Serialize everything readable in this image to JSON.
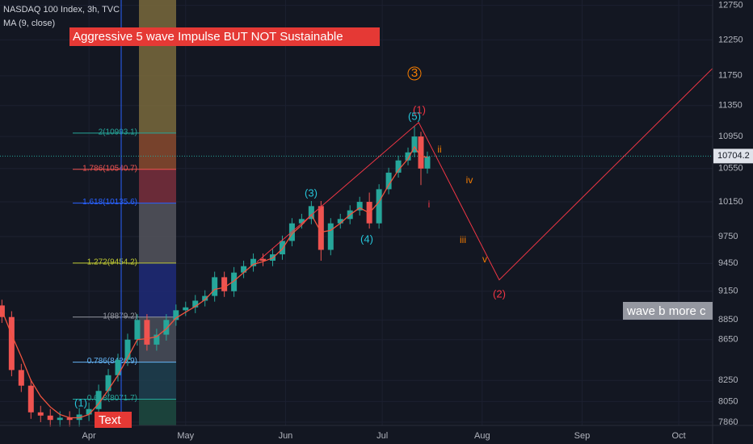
{
  "chart_data": {
    "type": "candlestick",
    "title": "NASDAQ 100 Index, 3h, TVC",
    "subtitle": "MA (9, close)",
    "headline": "Aggressive 5 wave Impulse BUT NOT Sustainable",
    "log_scale": true,
    "xlim": [
      -27.6,
      193.5
    ],
    "xticks": [
      {
        "value": 0,
        "label": "Apr"
      },
      {
        "value": 30,
        "label": "May"
      },
      {
        "value": 61,
        "label": "Jun"
      },
      {
        "value": 91,
        "label": "Jul"
      },
      {
        "value": 122,
        "label": "Aug"
      },
      {
        "value": 153,
        "label": "Sep"
      },
      {
        "value": 183,
        "label": "Oct"
      }
    ],
    "ylim": [
      7830,
      12830
    ],
    "yticks": [
      12750,
      12250,
      11750,
      11350,
      10950,
      10550,
      10150,
      9750,
      9450,
      9150,
      8850,
      8650,
      8250,
      8050,
      7860
    ],
    "up_color": "#26a69a",
    "down_color": "#ef5350",
    "ma_color": "#f0533f",
    "x": [
      -27,
      -24,
      -21,
      -18,
      -15,
      -12,
      -9,
      -6,
      -3,
      0,
      3,
      6,
      9,
      12,
      15,
      18,
      21,
      24,
      27,
      30,
      33,
      36,
      39,
      42,
      45,
      48,
      51,
      54,
      57,
      60,
      63,
      66,
      69,
      72,
      75,
      78,
      81,
      84,
      87,
      90,
      93,
      96,
      99,
      101,
      103,
      105
    ],
    "open": [
      9000,
      8880,
      8350,
      8200,
      7950,
      7920,
      7880,
      7900,
      7880,
      7930,
      7980,
      8150,
      8300,
      8450,
      8650,
      8850,
      8600,
      8700,
      8850,
      8950,
      8980,
      9050,
      9100,
      9300,
      9150,
      9350,
      9420,
      9500,
      9480,
      9550,
      9700,
      9900,
      9950,
      10100,
      9600,
      9900,
      9950,
      10050,
      10150,
      9900,
      10300,
      10500,
      10650,
      10750,
      10950,
      10550
    ],
    "high": [
      9060,
      8940,
      8410,
      8260,
      8010,
      7980,
      7960,
      7960,
      7990,
      8040,
      8210,
      8360,
      8510,
      8710,
      8910,
      8910,
      8760,
      8910,
      9010,
      9040,
      9110,
      9160,
      9360,
      9360,
      9410,
      9480,
      9560,
      9560,
      9610,
      9760,
      9960,
      10010,
      10160,
      10160,
      9960,
      10010,
      10110,
      10210,
      10260,
      10360,
      10560,
      10710,
      10810,
      11080,
      11010,
      10760
    ],
    "low": [
      8820,
      8290,
      8140,
      7890,
      7860,
      7820,
      7820,
      7820,
      7820,
      7870,
      7920,
      8090,
      8240,
      8390,
      8590,
      8540,
      8540,
      8640,
      8790,
      8890,
      8920,
      8990,
      9040,
      9090,
      9090,
      9290,
      9360,
      9420,
      9420,
      9490,
      9640,
      9840,
      9890,
      9480,
      9540,
      9840,
      9890,
      9990,
      9840,
      9840,
      10240,
      10440,
      10590,
      10690,
      10350,
      10490
    ],
    "close": [
      8880,
      8350,
      8200,
      7950,
      7920,
      7880,
      7900,
      7880,
      7930,
      7980,
      8150,
      8300,
      8450,
      8650,
      8850,
      8600,
      8700,
      8850,
      8950,
      8980,
      9050,
      9100,
      9300,
      9150,
      9350,
      9420,
      9500,
      9480,
      9550,
      9700,
      9900,
      9950,
      10100,
      9600,
      9900,
      9950,
      10050,
      10150,
      9900,
      10300,
      10500,
      10650,
      10750,
      10950,
      10550,
      10700
    ],
    "ma": [
      8950,
      8700,
      8480,
      8250,
      8100,
      8000,
      7930,
      7900,
      7900,
      7930,
      8030,
      8160,
      8300,
      8470,
      8650,
      8660,
      8680,
      8760,
      8870,
      8930,
      8990,
      9060,
      9170,
      9190,
      9260,
      9350,
      9440,
      9470,
      9510,
      9610,
      9780,
      9880,
      10000,
      9800,
      9820,
      9900,
      10000,
      10080,
      10020,
      10150,
      10350,
      10530,
      10670,
      10820,
      10700,
      10690
    ],
    "last_price": {
      "value": 10704.2,
      "label": "10704.2"
    },
    "fib_levels": [
      {
        "value": 10993.1,
        "label": "2(10993.1)",
        "color": "#26a69a"
      },
      {
        "value": 10540.7,
        "label": "1.786(10540.7)",
        "color": "#ef5350"
      },
      {
        "value": 10135.6,
        "label": "1.618(10135.6)",
        "color": "#2962ff"
      },
      {
        "value": 9454.2,
        "label": "1.272(9454.2)",
        "color": "#c0ca33"
      },
      {
        "value": 8879.2,
        "label": "1(8879.2)",
        "color": "#9598a1"
      },
      {
        "value": 8426.9,
        "label": "0.786(8426.9)",
        "color": "#64b5f6"
      },
      {
        "value": 8071.7,
        "label": "0.618(8071.7)",
        "color": "#26a69a"
      }
    ],
    "projection": {
      "color": "#f23645",
      "x": [
        52.1,
        102.3,
        127.3,
        193.5
      ],
      "y": [
        9465,
        11130,
        9271,
        11851
      ]
    },
    "annotations": [
      "3",
      "(1)",
      "(5)",
      "(3)",
      "(4)",
      "ii",
      "iv",
      "i",
      "iii",
      "v",
      "(2)",
      "(1)"
    ],
    "text_box": "Text",
    "note_box": "wave b more c"
  }
}
